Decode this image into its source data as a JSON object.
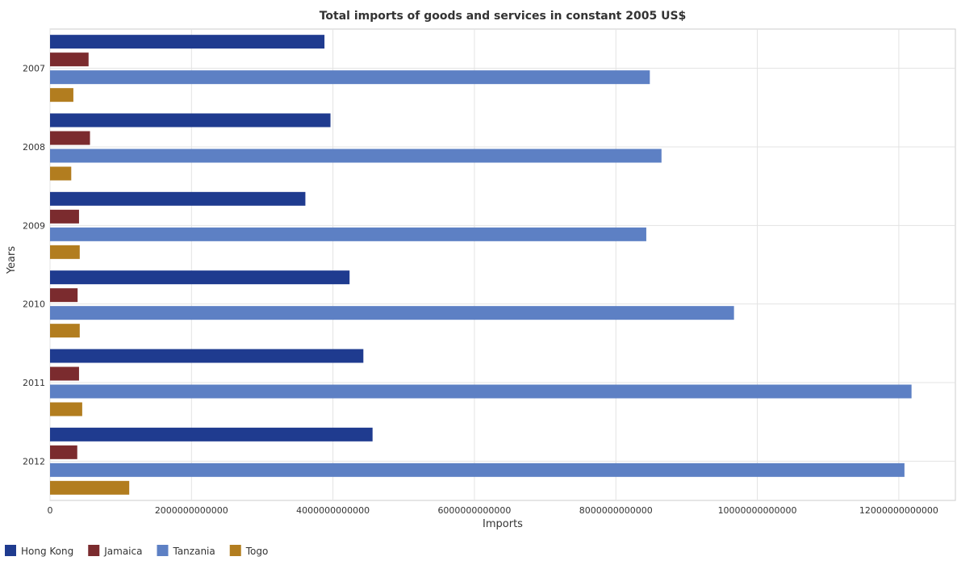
{
  "chart_data": {
    "type": "bar",
    "orientation": "horizontal",
    "title": "Total imports of goods and services in constant 2005 US$",
    "xlabel": "Imports",
    "ylabel": "Years",
    "categories": [
      "2007",
      "2008",
      "2009",
      "2010",
      "2011",
      "2012"
    ],
    "xlim": [
      0,
      12800000000000
    ],
    "xticks": [
      0,
      2000000000000,
      4000000000000,
      6000000000000,
      8000000000000,
      10000000000000,
      12000000000000
    ],
    "xtick_labels": [
      "0",
      "2000000000000",
      "4000000000000",
      "6000000000000",
      "8000000000000",
      "10000000000000",
      "12000000000000"
    ],
    "grid": true,
    "legend_position": "bottom-left",
    "series": [
      {
        "name": "Hong Kong",
        "color": "#1f3b8f",
        "values": [
          3880000000000,
          3965000000000,
          3610000000000,
          4235000000000,
          4430000000000,
          4560000000000
        ]
      },
      {
        "name": "Jamaica",
        "color": "#7b2b2e",
        "values": [
          545000000000,
          565000000000,
          410000000000,
          390000000000,
          410000000000,
          385000000000
        ]
      },
      {
        "name": "Tanzania",
        "color": "#5d80c4",
        "values": [
          8480000000000,
          8645000000000,
          8430000000000,
          9670000000000,
          12180000000000,
          12080000000000
        ]
      },
      {
        "name": "Togo",
        "color": "#b27d1f",
        "values": [
          330000000000,
          300000000000,
          420000000000,
          420000000000,
          455000000000,
          1120000000000
        ]
      }
    ]
  }
}
